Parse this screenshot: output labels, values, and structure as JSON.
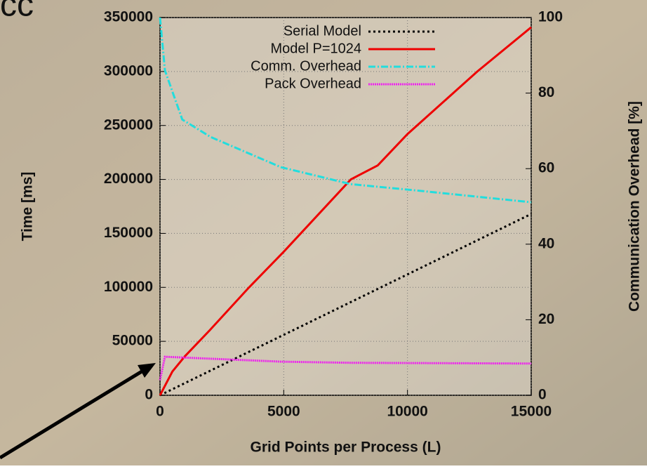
{
  "annotation": "cc",
  "chart_data": {
    "type": "line",
    "xlabel": "Grid Points per Process (L)",
    "ylabel": "Time [ms]",
    "y2label": "Communication Overhead [%]",
    "xlim": [
      0,
      15000
    ],
    "xticks": [
      0,
      5000,
      10000,
      15000
    ],
    "ylim": [
      0,
      350000
    ],
    "yticks": [
      0,
      50000,
      100000,
      150000,
      200000,
      250000,
      300000,
      350000
    ],
    "y2lim": [
      0,
      100
    ],
    "y2ticks": [
      0,
      20,
      40,
      60,
      80,
      100
    ],
    "grid": true,
    "legend": "upper right",
    "series": [
      {
        "name": "Serial Model",
        "color": "#000000",
        "style": "dotted",
        "x": [
          0,
          15000
        ],
        "values": [
          0,
          168000
        ]
      },
      {
        "name": "Model P=1024",
        "color": "#ee0000",
        "style": "solid",
        "x": [
          0,
          500,
          1000,
          2000,
          3600,
          5000,
          7710,
          8800,
          10000,
          12820,
          15000
        ],
        "values": [
          0,
          22000,
          36000,
          60000,
          100000,
          133000,
          200000,
          213000,
          242000,
          300000,
          341000
        ]
      },
      {
        "name": "Comm. Overhead",
        "color": "#22dddd",
        "style": "dashdot",
        "axis": "y2",
        "x": [
          0,
          200,
          900,
          2040,
          4880,
          7710,
          10550,
          15000
        ],
        "values": [
          100,
          86,
          73,
          68.4,
          60.4,
          55.9,
          54.1,
          51.1
        ]
      },
      {
        "name": "Pack Overhead",
        "color": "#ee22ee",
        "style": "dense",
        "axis": "y2",
        "x": [
          0,
          200,
          4880,
          7710,
          15000
        ],
        "values": [
          4,
          10.2,
          8.9,
          8.6,
          8.4
        ]
      }
    ]
  }
}
